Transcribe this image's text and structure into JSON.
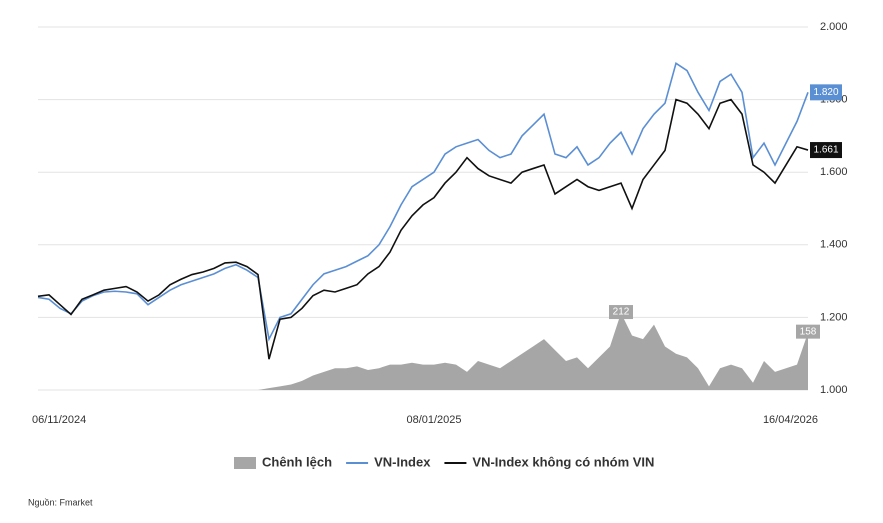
{
  "chart_data": {
    "type": "line",
    "categories": [
      "06/11/2024",
      null,
      null,
      null,
      null,
      null,
      null,
      null,
      null,
      null,
      null,
      null,
      null,
      null,
      null,
      null,
      null,
      null,
      null,
      null,
      null,
      null,
      null,
      null,
      null,
      null,
      null,
      null,
      null,
      null,
      null,
      null,
      null,
      null,
      null,
      null,
      "08/01/2025",
      null,
      null,
      null,
      null,
      null,
      null,
      null,
      null,
      null,
      null,
      null,
      null,
      null,
      null,
      null,
      null,
      null,
      null,
      null,
      null,
      null,
      null,
      null,
      null,
      null,
      null,
      null,
      null,
      null,
      null,
      null,
      null,
      null,
      "16/04/2026"
    ],
    "series": [
      {
        "name": "Chênh lệch",
        "type": "area",
        "axis": "y2",
        "color": "#a6a6a6",
        "values": [
          0,
          0,
          0,
          0,
          0,
          0,
          0,
          0,
          0,
          0,
          0,
          0,
          0,
          0,
          0,
          0,
          0,
          0,
          0,
          0,
          0,
          5,
          10,
          15,
          25,
          40,
          50,
          60,
          60,
          65,
          55,
          60,
          70,
          70,
          75,
          70,
          70,
          75,
          70,
          50,
          80,
          70,
          60,
          80,
          100,
          120,
          140,
          110,
          80,
          90,
          60,
          90,
          120,
          212,
          150,
          140,
          180,
          120,
          100,
          90,
          60,
          10,
          60,
          70,
          60,
          20,
          80,
          50,
          60,
          70,
          158
        ],
        "value_labels": [
          null,
          null,
          null,
          null,
          null,
          null,
          null,
          null,
          null,
          null,
          null,
          null,
          null,
          null,
          null,
          null,
          null,
          null,
          null,
          null,
          null,
          null,
          null,
          null,
          null,
          null,
          null,
          null,
          null,
          null,
          null,
          null,
          null,
          null,
          null,
          null,
          null,
          null,
          null,
          null,
          null,
          null,
          null,
          null,
          null,
          null,
          null,
          null,
          null,
          null,
          null,
          null,
          null,
          "212",
          null,
          null,
          null,
          null,
          null,
          null,
          null,
          null,
          null,
          null,
          null,
          null,
          null,
          null,
          null,
          null,
          "158"
        ]
      },
      {
        "name": "VN-Index",
        "color": "#5b8fd4",
        "values": [
          1255,
          1250,
          1225,
          1210,
          1245,
          1260,
          1270,
          1272,
          1270,
          1265,
          1235,
          1255,
          1275,
          1290,
          1300,
          1310,
          1320,
          1335,
          1345,
          1330,
          1310,
          1140,
          1200,
          1210,
          1250,
          1290,
          1320,
          1330,
          1340,
          1355,
          1370,
          1400,
          1450,
          1510,
          1560,
          1580,
          1600,
          1650,
          1670,
          1680,
          1690,
          1660,
          1640,
          1650,
          1700,
          1730,
          1760,
          1650,
          1640,
          1670,
          1620,
          1640,
          1680,
          1710,
          1650,
          1720,
          1760,
          1790,
          1900,
          1880,
          1820,
          1770,
          1850,
          1870,
          1820,
          1640,
          1680,
          1620,
          1680,
          1740,
          1820
        ],
        "value_labels": [
          null,
          null,
          null,
          null,
          null,
          null,
          null,
          null,
          null,
          null,
          null,
          null,
          null,
          null,
          null,
          null,
          null,
          null,
          null,
          null,
          null,
          null,
          null,
          null,
          null,
          null,
          null,
          null,
          null,
          null,
          null,
          null,
          null,
          null,
          null,
          null,
          null,
          null,
          null,
          null,
          null,
          null,
          null,
          null,
          null,
          null,
          null,
          null,
          null,
          null,
          null,
          null,
          null,
          null,
          null,
          null,
          null,
          null,
          null,
          null,
          null,
          null,
          null,
          null,
          null,
          null,
          null,
          null,
          null,
          null,
          "1.820"
        ]
      },
      {
        "name": "VN-Index không có nhóm VIN",
        "color": "#111111",
        "values": [
          1258,
          1262,
          1235,
          1208,
          1250,
          1262,
          1275,
          1280,
          1285,
          1270,
          1245,
          1262,
          1290,
          1305,
          1318,
          1325,
          1335,
          1350,
          1352,
          1340,
          1318,
          1085,
          1195,
          1200,
          1225,
          1260,
          1275,
          1270,
          1280,
          1290,
          1320,
          1340,
          1380,
          1440,
          1480,
          1510,
          1530,
          1570,
          1600,
          1640,
          1610,
          1590,
          1580,
          1570,
          1600,
          1610,
          1620,
          1540,
          1560,
          1580,
          1560,
          1550,
          1560,
          1570,
          1500,
          1580,
          1620,
          1660,
          1800,
          1790,
          1760,
          1720,
          1790,
          1800,
          1760,
          1620,
          1600,
          1570,
          1620,
          1670,
          1661
        ],
        "value_labels": [
          null,
          null,
          null,
          null,
          null,
          null,
          null,
          null,
          null,
          null,
          null,
          null,
          null,
          null,
          null,
          null,
          null,
          null,
          null,
          null,
          null,
          null,
          null,
          null,
          null,
          null,
          null,
          null,
          null,
          null,
          null,
          null,
          null,
          null,
          null,
          null,
          null,
          null,
          null,
          null,
          null,
          null,
          null,
          null,
          null,
          null,
          null,
          null,
          null,
          null,
          null,
          null,
          null,
          null,
          null,
          null,
          null,
          null,
          null,
          null,
          null,
          null,
          null,
          null,
          null,
          null,
          null,
          null,
          null,
          null,
          "1.661"
        ]
      }
    ],
    "ylim": [
      1000,
      2000
    ],
    "yticks": [
      {
        "value": 1000,
        "label": "1.000"
      },
      {
        "value": 1200,
        "label": "1.200"
      },
      {
        "value": 1400,
        "label": "1.400"
      },
      {
        "value": 1600,
        "label": "1.600"
      },
      {
        "value": 1800,
        "label": "1.800"
      },
      {
        "value": 2000,
        "label": "2.000"
      }
    ],
    "y2lim": [
      0,
      1000
    ],
    "grid": true,
    "legend": "bottom",
    "source": "Nguồn: Fmarket"
  }
}
